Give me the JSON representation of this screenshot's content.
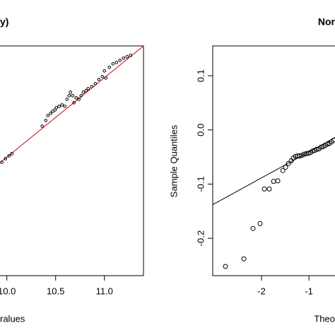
{
  "chart_data": [
    {
      "type": "scatter",
      "title": "y)",
      "x_label": "ralues",
      "color": "#000000",
      "line_color": "#cc0000",
      "xlim": [
        9.93,
        11.4
      ],
      "ylim": [
        8.48,
        11.43
      ],
      "xticks": [
        {
          "value": 10,
          "label": "10.0"
        },
        {
          "value": 10.5,
          "label": "10.5"
        },
        {
          "value": 11,
          "label": "11.0"
        }
      ],
      "x": [
        9.949,
        9.986,
        10.022,
        10.051,
        10.362,
        10.399,
        10.42,
        10.449,
        10.471,
        10.493,
        10.507,
        10.536,
        10.565,
        10.594,
        10.616,
        10.638,
        10.652,
        10.674,
        10.688,
        10.71,
        10.739,
        10.761,
        10.783,
        10.812,
        10.833,
        10.87,
        10.906,
        10.942,
        10.978,
        11.0,
        11.014,
        11.051,
        11.087,
        11.123,
        11.159,
        11.196,
        11.232,
        11.268
      ],
      "values": [
        9.936,
        9.982,
        10.018,
        10.045,
        10.4,
        10.473,
        10.536,
        10.564,
        10.591,
        10.609,
        10.636,
        10.655,
        10.673,
        10.655,
        10.745,
        10.791,
        10.836,
        10.791,
        10.7,
        10.764,
        10.745,
        10.791,
        10.836,
        10.855,
        10.882,
        10.909,
        10.945,
        11.0,
        11.036,
        11.109,
        11.018,
        11.155,
        11.2,
        11.218,
        11.245,
        11.273,
        11.291,
        11.309
      ],
      "line_x": [
        9.93,
        11.4
      ],
      "line_y": [
        9.93,
        11.43
      ]
    },
    {
      "type": "scatter",
      "title": "Nor",
      "x_label": "Theo",
      "y_label": "Sample Quantiles",
      "color": "#000000",
      "line_color": "#000000",
      "xlim": [
        -3.03,
        -0.45
      ],
      "ylim": [
        -0.269,
        0.155
      ],
      "xticks": [
        -2,
        -1
      ],
      "yticks": [
        -0.2,
        -0.1,
        {
          "value": 0,
          "label": "0.0"
        },
        0.1
      ],
      "x": [
        -2.761,
        -2.373,
        -2.179,
        -2.03,
        -1.94,
        -1.836,
        -1.746,
        -1.657,
        -1.552,
        -1.493,
        -1.433,
        -1.373,
        -1.328,
        -1.284,
        -1.239,
        -1.194,
        -1.149,
        -1.104,
        -1.06,
        -1.015,
        -0.97,
        -0.925,
        -0.881,
        -0.836,
        -0.791,
        -0.746,
        -0.701,
        -0.657,
        -0.612,
        -0.567,
        -0.522,
        -0.478
      ],
      "values": [
        -0.252,
        -0.238,
        -0.182,
        -0.173,
        -0.109,
        -0.109,
        -0.095,
        -0.094,
        -0.075,
        -0.069,
        -0.062,
        -0.057,
        -0.052,
        -0.049,
        -0.048,
        -0.048,
        -0.047,
        -0.045,
        -0.044,
        -0.043,
        -0.042,
        -0.039,
        -0.038,
        -0.036,
        -0.035,
        -0.032,
        -0.031,
        -0.029,
        -0.026,
        -0.025,
        -0.022,
        -0.019
      ],
      "line_x": [
        -3.03,
        -0.45
      ],
      "line_y": [
        -0.138,
        -0.014
      ]
    }
  ]
}
